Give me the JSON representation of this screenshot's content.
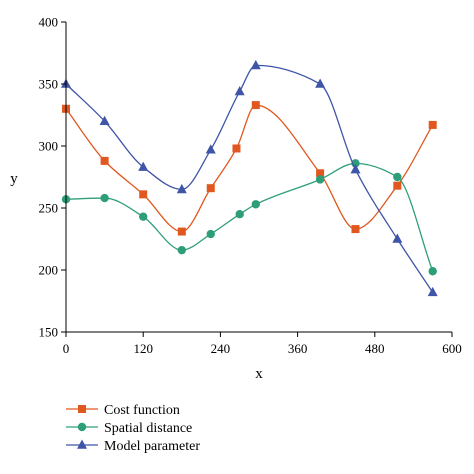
{
  "chart_data": {
    "type": "line",
    "title": "",
    "xlabel": "x",
    "ylabel": "y",
    "xlim": [
      0,
      600
    ],
    "ylim": [
      150,
      400
    ],
    "xticks": [
      0,
      120,
      240,
      360,
      480,
      600
    ],
    "yticks": [
      150,
      200,
      250,
      300,
      350,
      400
    ],
    "grid": false,
    "legend_position": "bottom-left",
    "smooth": true,
    "series": [
      {
        "name": "Cost function",
        "color": "#e0581f",
        "marker": "square",
        "points": [
          [
            0,
            330
          ],
          [
            60,
            288
          ],
          [
            120,
            261
          ],
          [
            180,
            231
          ],
          [
            225,
            266
          ],
          [
            265,
            298
          ],
          [
            295,
            333
          ],
          [
            395,
            278
          ],
          [
            450,
            233
          ],
          [
            515,
            268
          ],
          [
            570,
            317
          ]
        ]
      },
      {
        "name": "Spatial distance",
        "color": "#2e9e7a",
        "marker": "circle",
        "points": [
          [
            0,
            257
          ],
          [
            60,
            258
          ],
          [
            120,
            243
          ],
          [
            180,
            216
          ],
          [
            225,
            229
          ],
          [
            270,
            245
          ],
          [
            295,
            253
          ],
          [
            395,
            273
          ],
          [
            450,
            286
          ],
          [
            515,
            275
          ],
          [
            570,
            199
          ]
        ]
      },
      {
        "name": "Model parameter",
        "color": "#3f55a8",
        "marker": "triangle",
        "points": [
          [
            0,
            350
          ],
          [
            60,
            320
          ],
          [
            120,
            283
          ],
          [
            180,
            265
          ],
          [
            225,
            297
          ],
          [
            270,
            344
          ],
          [
            295,
            365
          ],
          [
            395,
            350
          ],
          [
            450,
            281
          ],
          [
            515,
            225
          ],
          [
            570,
            182
          ]
        ]
      }
    ]
  }
}
